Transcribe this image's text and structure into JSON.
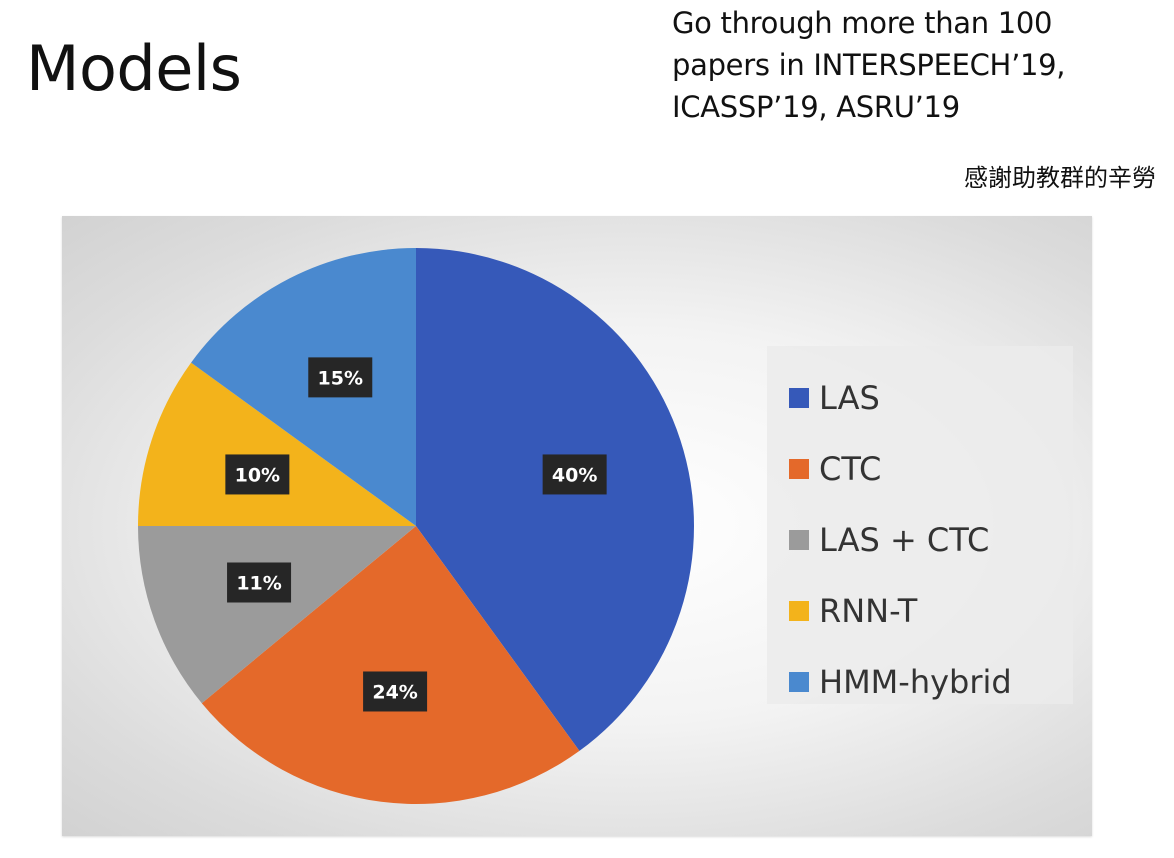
{
  "slide": {
    "title": "Models",
    "note_lines": [
      "Go through more than 100",
      "papers in INTERSPEECH’19,",
      "ICASSP’19, ASRU’19"
    ],
    "thanks": "感謝助教群的辛勞"
  },
  "chart_data": {
    "type": "pie",
    "title": "",
    "categories": [
      "LAS",
      "CTC",
      "LAS + CTC",
      "RNN-T",
      "HMM-hybrid"
    ],
    "values": [
      40,
      24,
      11,
      10,
      15
    ],
    "labels": [
      "40%",
      "24%",
      "11%",
      "10%",
      "15%"
    ],
    "colors": [
      "#3659b9",
      "#e4692a",
      "#9b9b9b",
      "#f3b31b",
      "#4a89cf"
    ],
    "start_angle": "12 o'clock",
    "direction": "clockwise",
    "legend_position": "right"
  }
}
